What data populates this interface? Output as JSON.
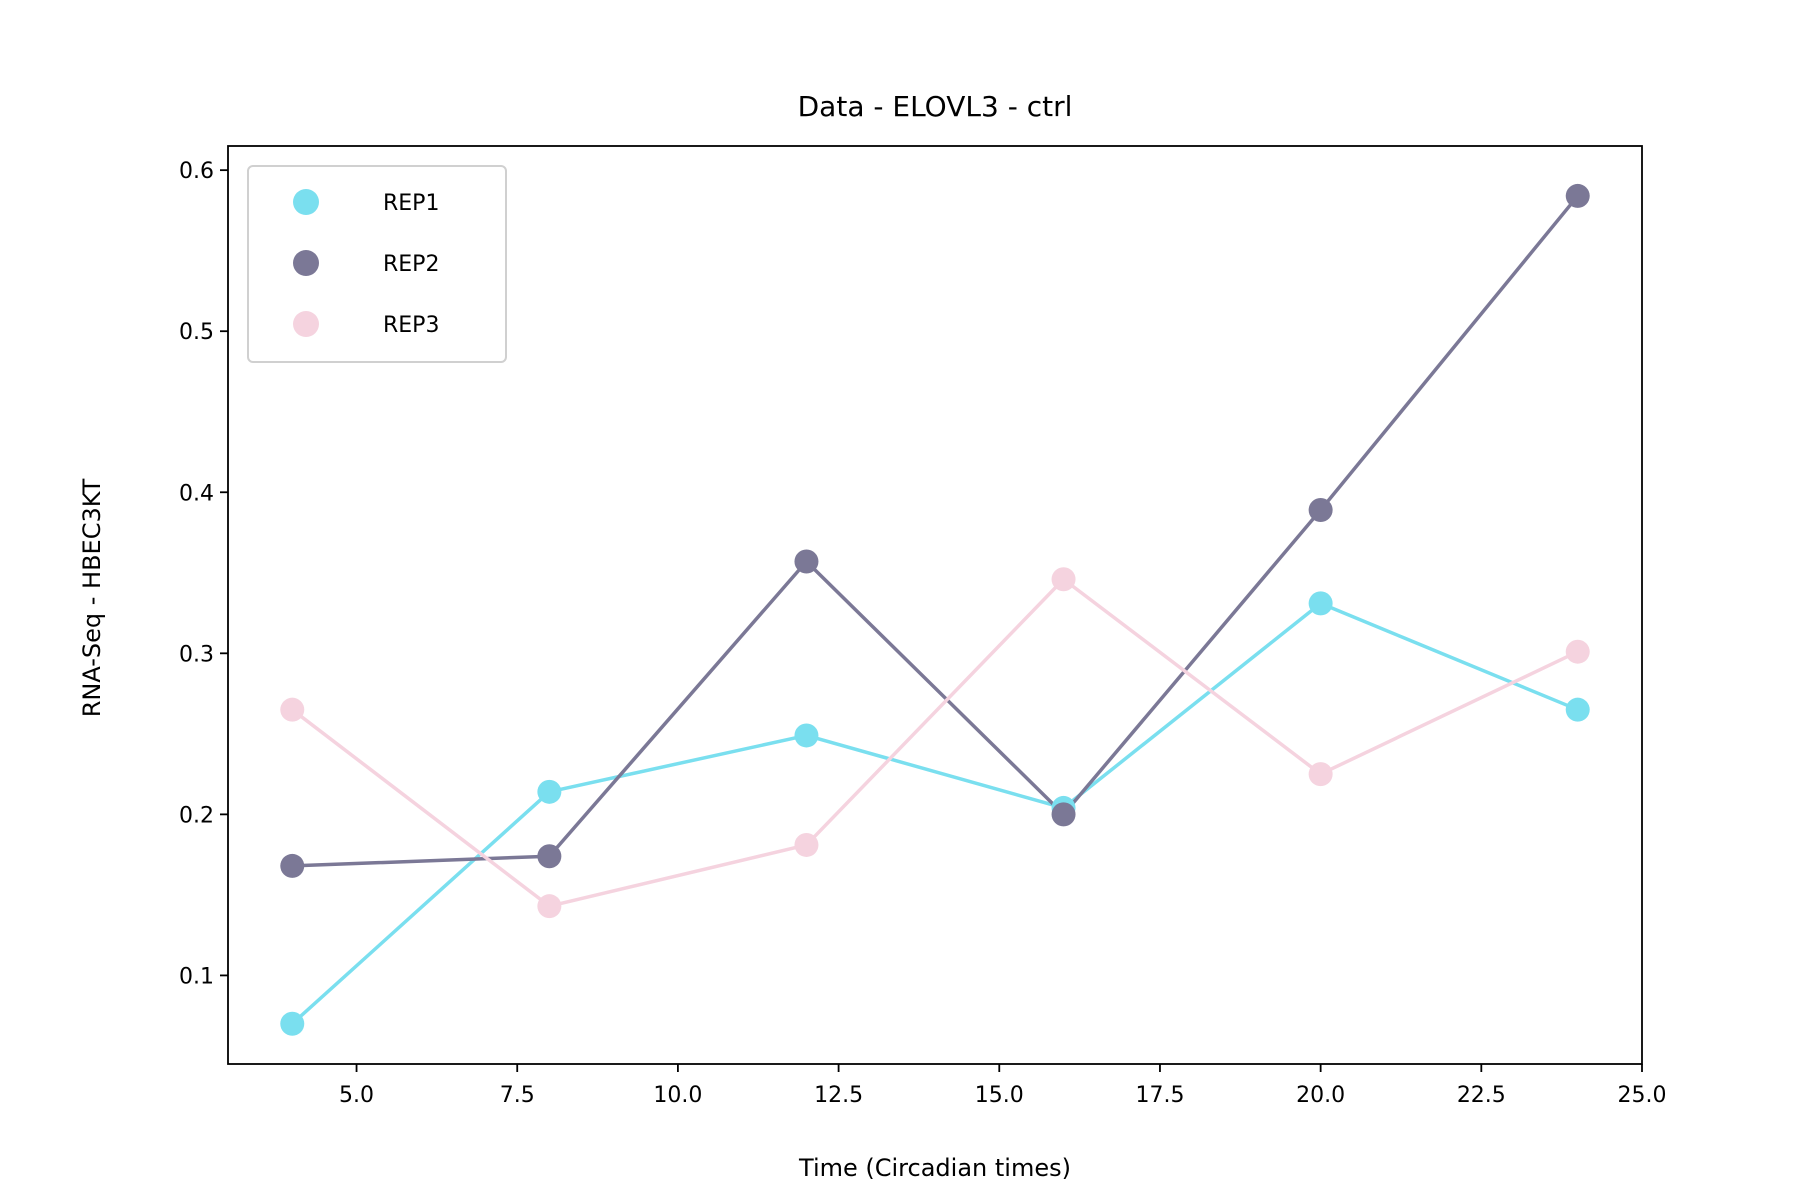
{
  "chart_data": {
    "type": "line",
    "title": "Data - ELOVL3 - ctrl",
    "xlabel": "Time (Circadian times)",
    "ylabel": "RNA-Seq - HBEC3KT",
    "xlim": [
      3.0,
      25.0
    ],
    "ylim": [
      0.045,
      0.615
    ],
    "xticks": [
      5.0,
      7.5,
      10.0,
      12.5,
      15.0,
      17.5,
      20.0,
      22.5,
      25.0
    ],
    "xtick_labels": [
      "5.0",
      "7.5",
      "10.0",
      "12.5",
      "15.0",
      "17.5",
      "20.0",
      "22.5",
      "25.0"
    ],
    "yticks": [
      0.1,
      0.2,
      0.3,
      0.4,
      0.5,
      0.6
    ],
    "ytick_labels": [
      "0.1",
      "0.2",
      "0.3",
      "0.4",
      "0.5",
      "0.6"
    ],
    "grid": false,
    "legend_position": "top-left",
    "x": [
      4,
      8,
      12,
      16,
      20,
      24
    ],
    "series": [
      {
        "name": "REP1",
        "color": "#7adfef",
        "values": [
          0.07,
          0.214,
          0.249,
          0.204,
          0.331,
          0.265
        ]
      },
      {
        "name": "REP2",
        "color": "#7b7896",
        "values": [
          0.168,
          0.174,
          0.357,
          0.2,
          0.389,
          0.584
        ]
      },
      {
        "name": "REP3",
        "color": "#f5d3df",
        "values": [
          0.265,
          0.143,
          0.181,
          0.346,
          0.225,
          0.301
        ]
      }
    ]
  }
}
